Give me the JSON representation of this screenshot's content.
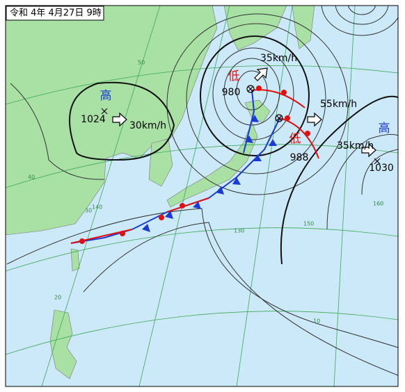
{
  "title": "令和 4年 4月27日 9時",
  "pressure_systems": [
    {
      "label": "高",
      "pressure": 1024,
      "speed": "30km/h"
    },
    {
      "label": "低",
      "pressure": 980,
      "speed": "35km/h"
    },
    {
      "label": "低",
      "pressure": 988,
      "speed": "55km/h"
    },
    {
      "label": "高",
      "pressure": 1030,
      "speed": "35km/h"
    }
  ],
  "grid_labels": {
    "latitude": [
      "50",
      "40",
      "30",
      "20",
      "10"
    ],
    "longitude": [
      "130",
      "140",
      "150",
      "160"
    ]
  }
}
